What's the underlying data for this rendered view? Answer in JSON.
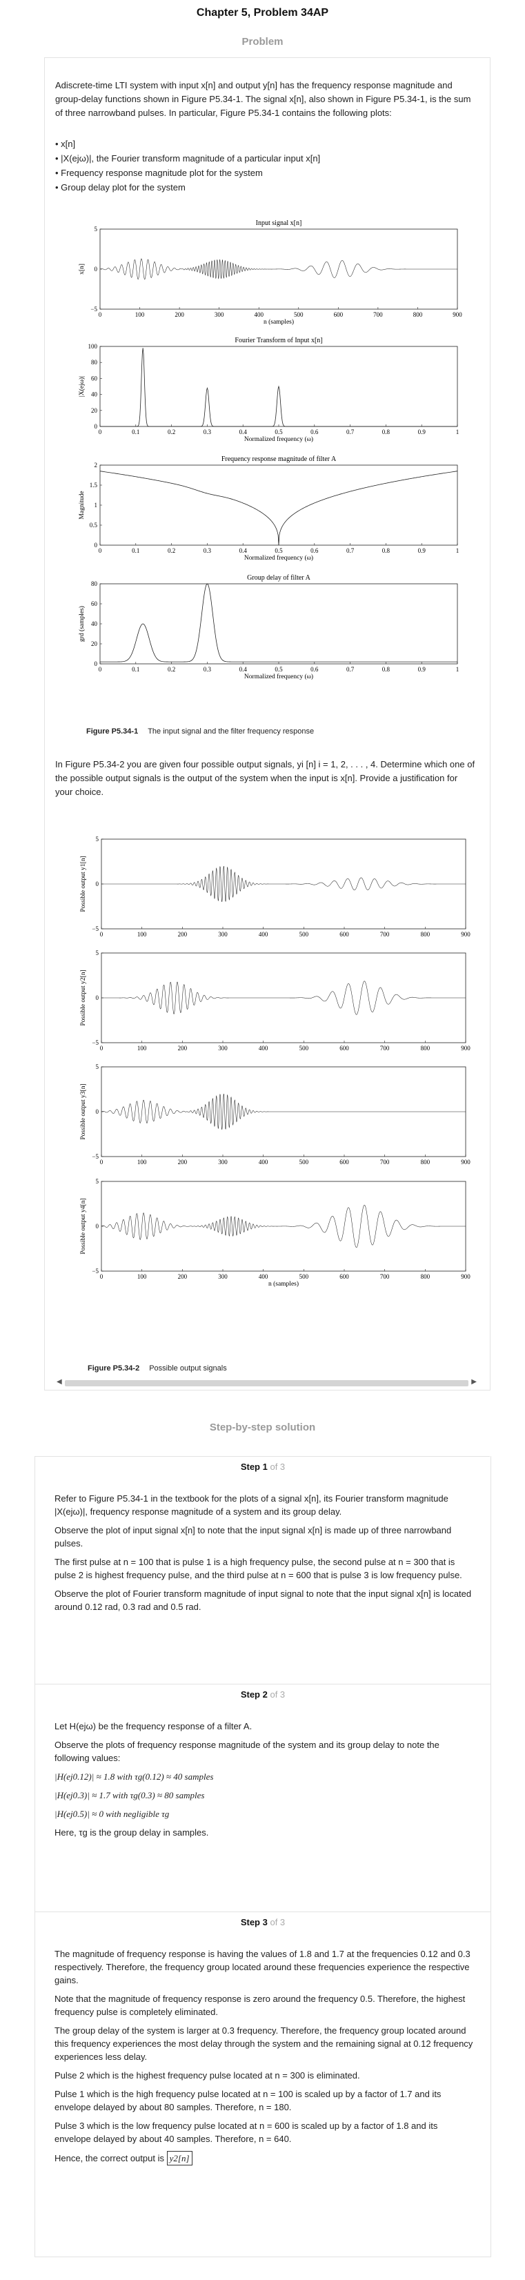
{
  "header": {
    "title": "Chapter 5, Problem 34AP",
    "section": "Problem"
  },
  "problem": {
    "intro": "Adiscrete-time LTI system with input x[n] and output y[n] has the frequency response magnitude and group-delay functions shown in Figure P5.34-1. The signal x[n], also shown in Figure P5.34-1, is the sum of three narrowband pulses. In particular, Figure P5.34-1 contains the following plots:",
    "bullets": [
      "• x[n]",
      "• |X(ejω)|, the Fourier transform magnitude of a particular input x[n]",
      "• Frequency response magnitude plot for the system",
      "• Group delay plot for the system"
    ],
    "fig1": {
      "plots": [
        {
          "title": "Input signal x[n]",
          "ylabel": "x[n]",
          "xlabel": "n (samples)",
          "xticks": [
            "0",
            "100",
            "200",
            "300",
            "400",
            "500",
            "600",
            "700",
            "800",
            "900"
          ],
          "yticks": [
            "5",
            "0",
            "−5"
          ]
        },
        {
          "title": "Fourier Transform of Input x[n]",
          "ylabel": "|X(ejω)|",
          "xlabel": "Normalized frequency (ω)",
          "xticks": [
            "0",
            "0.1",
            "0.2",
            "0.3",
            "0.4",
            "0.5",
            "0.6",
            "0.7",
            "0.8",
            "0.9",
            "1"
          ],
          "yticks": [
            "100",
            "80",
            "60",
            "40",
            "20",
            "0"
          ]
        },
        {
          "title": "Frequency response magnitude of filter A",
          "ylabel": "Magnitude",
          "xlabel": "Normalized frequency (ω)",
          "xticks": [
            "0",
            "0.1",
            "0.2",
            "0.3",
            "0.4",
            "0.5",
            "0.6",
            "0.7",
            "0.8",
            "0.9",
            "1"
          ],
          "yticks": [
            "2",
            "1.5",
            "1",
            "0.5",
            "0"
          ]
        },
        {
          "title": "Group delay of filter  A",
          "ylabel": "grd (samples)",
          "xlabel": "Normalized frequency (ω)",
          "xticks": [
            "0",
            "0.1",
            "0.2",
            "0.3",
            "0.4",
            "0.5",
            "0.6",
            "0.7",
            "0.8",
            "0.9",
            "1"
          ],
          "yticks": [
            "80",
            "60",
            "40",
            "20",
            "0"
          ]
        }
      ],
      "caption_label": "Figure P5.34-1",
      "caption": "The input signal and the filter frequency response"
    },
    "question": "In Figure P5.34-2 you are given four possible output signals, yi [n] i = 1, 2, . . . , 4. Determine which one of the possible output signals is the output of the system when the input is x[n]. Provide a justification for your choice.",
    "fig2": {
      "plots": [
        {
          "ylabel": "Possible output y1[n]"
        },
        {
          "ylabel": "Possible output y2[n]"
        },
        {
          "ylabel": "Possible output y3[n]"
        },
        {
          "ylabel": "Possible output y4[n]"
        }
      ],
      "xticks": [
        "0",
        "100",
        "200",
        "300",
        "400",
        "500",
        "600",
        "700",
        "800",
        "900"
      ],
      "yticks": [
        "5",
        "0",
        "−5"
      ],
      "xlabel": "n (samples)",
      "caption_label": "Figure P5.34-2",
      "caption": "Possible output signals"
    }
  },
  "solution": {
    "heading": "Step-by-step solution",
    "steps": [
      {
        "label": "Step 1",
        "of": "of 3",
        "paras": [
          "Refer to Figure P5.34-1 in the textbook for the plots of a signal  x[n], its Fourier transform magnitude  |X(ejω)|, frequency response magnitude of a system and its group delay.",
          "Observe the plot of input signal  x[n] to note that the input signal  x[n] is made up of three narrowband pulses.",
          "The first pulse at  n = 100 that is pulse 1 is a high frequency pulse, the second pulse at  n = 300 that is pulse 2 is highest frequency pulse, and the third pulse at  n = 600 that is pulse 3 is low frequency pulse.",
          "Observe the plot of Fourier transform magnitude of input signal to note that the input signal  x[n] is located around 0.12 rad, 0.3 rad and 0.5 rad."
        ]
      },
      {
        "label": "Step 2",
        "of": "of 3",
        "paras": [
          "Let  H(ejω) be the frequency response of a filter A.",
          "Observe the plots of frequency response magnitude of the system and its group delay to note the following values:",
          "|H(ej0.12)| ≈ 1.8 with τg(0.12) ≈ 40 samples",
          "|H(ej0.3)| ≈ 1.7 with τg(0.3) ≈ 80 samples",
          "|H(ej0.5)| ≈ 0 with negligible τg",
          "Here,  τg is the group delay in samples."
        ]
      },
      {
        "label": "Step 3",
        "of": "of 3",
        "paras": [
          "The magnitude of frequency response is having the values of 1.8 and 1.7 at the frequencies 0.12 and 0.3 respectively. Therefore, the frequency group located around these frequencies experience the respective gains.",
          "Note that the magnitude of frequency response is zero around the frequency 0.5. Therefore, the highest frequency pulse is completely eliminated.",
          "The group delay of the system is larger at 0.3 frequency. Therefore, the frequency group located around this frequency experiences the most delay through the system and the remaining signal at 0.12 frequency experiences less delay.",
          "Pulse 2 which is the highest frequency pulse located at  n = 300 is eliminated.",
          "Pulse 1 which is the high frequency pulse located at  n = 100 is scaled up by a factor of 1.7 and its envelope delayed by about 80 samples. Therefore,  n = 180.",
          "Pulse 3 which is the low frequency pulse located at  n = 600 is scaled up by a factor of 1.8 and its envelope delayed by about 40 samples. Therefore,  n = 640."
        ],
        "answer_prefix": "Hence, the correct output is",
        "answer": "y2[n]"
      }
    ]
  }
}
